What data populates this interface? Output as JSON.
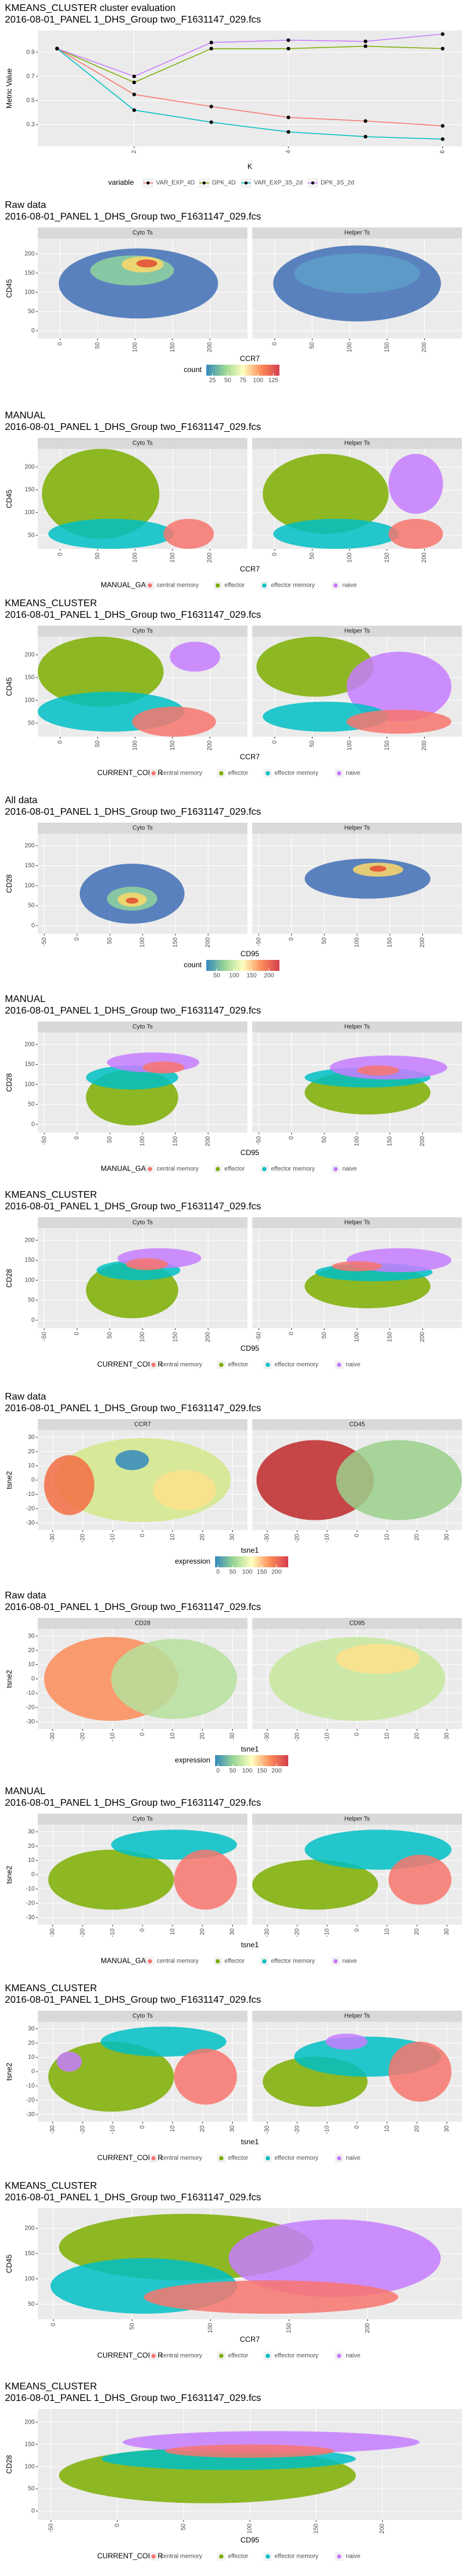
{
  "chart_data": [
    {
      "type": "line",
      "title": "KMEANS_CLUSTER cluster evaluation",
      "subtitle": "2016-08-01_PANEL 1_DHS_Group two_F1631147_029.fcs",
      "xlabel": "K",
      "ylabel": "Metric Value",
      "x": [
        1,
        2,
        3,
        4,
        5,
        6
      ],
      "xlim": [
        0.75,
        6.25
      ],
      "xticks": [
        2,
        4,
        6
      ],
      "ylim": [
        0.12,
        1.08
      ],
      "yticks": [
        0.3,
        0.5,
        0.7,
        0.9
      ],
      "legend_title": "variable",
      "point_color": "#000000",
      "series": [
        {
          "name": "VAR_EXP_4D",
          "color": "#F8766D",
          "values": [
            0.93,
            0.55,
            0.45,
            0.36,
            0.33,
            0.29
          ]
        },
        {
          "name": "DPK_4D",
          "color": "#7CAE00",
          "values": [
            0.93,
            0.65,
            0.93,
            0.93,
            0.95,
            0.93
          ]
        },
        {
          "name": "VAR_EXP_3S_2d",
          "color": "#00BFC4",
          "values": [
            0.93,
            0.42,
            0.32,
            0.24,
            0.2,
            0.18
          ]
        },
        {
          "name": "DPK_3S_2d",
          "color": "#C77CFF",
          "values": [
            0.93,
            0.7,
            0.98,
            1.0,
            0.99,
            1.05
          ]
        }
      ]
    },
    {
      "type": "scatter",
      "title": "Raw data",
      "subtitle": "2016-08-01_PANEL 1_DHS_Group two_F1631147_029.fcs",
      "facets": [
        "Cyto Ts",
        "Helper Ts"
      ],
      "xlabel": "CCR7",
      "ylabel": "CD45",
      "xlim": [
        -30,
        250
      ],
      "xticks": [
        0,
        50,
        100,
        150,
        200
      ],
      "ylim": [
        -20,
        240
      ],
      "yticks": [
        0,
        50,
        100,
        150,
        200
      ],
      "colorbar": {
        "title": "count",
        "lim": [
          15,
          135
        ],
        "ticks": [
          25,
          50,
          75,
          100,
          125
        ]
      }
    },
    {
      "type": "scatter",
      "title": "MANUAL",
      "subtitle": "2016-08-01_PANEL 1_DHS_Group two_F1631147_029.fcs",
      "facets": [
        "Cyto Ts",
        "Helper Ts"
      ],
      "xlabel": "CCR7",
      "ylabel": "CD45",
      "xlim": [
        -30,
        250
      ],
      "xticks": [
        0,
        50,
        100,
        150,
        200
      ],
      "ylim": [
        20,
        240
      ],
      "yticks": [
        50,
        100,
        150,
        200
      ],
      "legend": {
        "title": "MANUAL_GATE",
        "items": [
          {
            "name": "central memory",
            "color": "#F8766D"
          },
          {
            "name": "effector",
            "color": "#7CAE00"
          },
          {
            "name": "effector memory",
            "color": "#00BFC4"
          },
          {
            "name": "naive",
            "color": "#C77CFF"
          }
        ]
      }
    },
    {
      "type": "scatter",
      "title": "KMEANS_CLUSTER",
      "subtitle": "2016-08-01_PANEL 1_DHS_Group two_F1631147_029.fcs",
      "facets": [
        "Cyto Ts",
        "Helper Ts"
      ],
      "xlabel": "CCR7",
      "ylabel": "CD45",
      "xlim": [
        -30,
        250
      ],
      "xticks": [
        0,
        50,
        100,
        150,
        200
      ],
      "ylim": [
        20,
        240
      ],
      "yticks": [
        50,
        100,
        150,
        200
      ],
      "legend": {
        "title": "CURRENT_COLOR",
        "items": [
          {
            "name": "central memory",
            "color": "#F8766D"
          },
          {
            "name": "effector",
            "color": "#7CAE00"
          },
          {
            "name": "effector memory",
            "color": "#00BFC4"
          },
          {
            "name": "naive",
            "color": "#C77CFF"
          }
        ]
      }
    },
    {
      "type": "scatter",
      "title": "All data",
      "subtitle": "2016-08-01_PANEL 1_DHS_Group two_F1631147_029.fcs",
      "facets": [
        "Cyto Ts",
        "Helper Ts"
      ],
      "xlabel": "CD95",
      "ylabel": "CD28",
      "xlim": [
        -60,
        260
      ],
      "xticks": [
        -50,
        0,
        50,
        100,
        150,
        200
      ],
      "ylim": [
        -20,
        230
      ],
      "yticks": [
        0,
        50,
        100,
        150,
        200
      ],
      "colorbar": {
        "title": "count",
        "lim": [
          20,
          230
        ],
        "ticks": [
          50,
          100,
          150,
          200
        ]
      }
    },
    {
      "type": "scatter",
      "title": "MANUAL",
      "subtitle": "2016-08-01_PANEL 1_DHS_Group two_F1631147_029.fcs",
      "facets": [
        "Cyto Ts",
        "Helper Ts"
      ],
      "xlabel": "CD95",
      "ylabel": "CD28",
      "xlim": [
        -60,
        260
      ],
      "xticks": [
        -50,
        0,
        50,
        100,
        150,
        200
      ],
      "ylim": [
        -20,
        230
      ],
      "yticks": [
        0,
        50,
        100,
        150,
        200
      ],
      "legend": {
        "title": "MANUAL_GATE",
        "items": [
          {
            "name": "central memory",
            "color": "#F8766D"
          },
          {
            "name": "effector",
            "color": "#7CAE00"
          },
          {
            "name": "effector memory",
            "color": "#00BFC4"
          },
          {
            "name": "naive",
            "color": "#C77CFF"
          }
        ]
      }
    },
    {
      "type": "scatter",
      "title": "KMEANS_CLUSTER",
      "subtitle": "2016-08-01_PANEL 1_DHS_Group two_F1631147_029.fcs",
      "facets": [
        "Cyto Ts",
        "Helper Ts"
      ],
      "xlabel": "CD95",
      "ylabel": "CD28",
      "xlim": [
        -60,
        260
      ],
      "xticks": [
        -50,
        0,
        50,
        100,
        150,
        200
      ],
      "ylim": [
        -20,
        230
      ],
      "yticks": [
        0,
        50,
        100,
        150,
        200
      ],
      "legend": {
        "title": "CURRENT_COLOR",
        "items": [
          {
            "name": "central memory",
            "color": "#F8766D"
          },
          {
            "name": "effector",
            "color": "#7CAE00"
          },
          {
            "name": "effector memory",
            "color": "#00BFC4"
          },
          {
            "name": "naive",
            "color": "#C77CFF"
          }
        ]
      }
    },
    {
      "type": "scatter",
      "title": "Raw data",
      "subtitle": "2016-08-01_PANEL 1_DHS_Group two_F1631147_029.fcs",
      "facets": [
        "CCR7",
        "CD45"
      ],
      "xlabel": "tsne1",
      "ylabel": "tsne2",
      "xlim": [
        -35,
        35
      ],
      "xticks": [
        -30,
        -20,
        -10,
        0,
        10,
        20,
        30
      ],
      "ylim": [
        -35,
        35
      ],
      "yticks": [
        -30,
        -20,
        -10,
        0,
        10,
        20,
        30
      ],
      "colorbar": {
        "title": "expression",
        "lim": [
          -10,
          240
        ],
        "ticks": [
          0,
          50,
          100,
          150,
          200
        ]
      }
    },
    {
      "type": "scatter",
      "title": "Raw data",
      "subtitle": "2016-08-01_PANEL 1_DHS_Group two_F1631147_029.fcs",
      "facets": [
        "CD28",
        "CD95"
      ],
      "xlabel": "tsne1",
      "ylabel": "tsne2",
      "xlim": [
        -35,
        35
      ],
      "xticks": [
        -30,
        -20,
        -10,
        0,
        10,
        20,
        30
      ],
      "ylim": [
        -35,
        35
      ],
      "yticks": [
        -30,
        -20,
        -10,
        0,
        10,
        20,
        30
      ],
      "colorbar": {
        "title": "expression",
        "lim": [
          -10,
          240
        ],
        "ticks": [
          0,
          50,
          100,
          150,
          200
        ]
      }
    },
    {
      "type": "scatter",
      "title": "MANUAL",
      "subtitle": "2016-08-01_PANEL 1_DHS_Group two_F1631147_029.fcs",
      "facets": [
        "Cyto Ts",
        "Helper Ts"
      ],
      "xlabel": "tsne1",
      "ylabel": "tsne2",
      "xlim": [
        -35,
        35
      ],
      "xticks": [
        -30,
        -20,
        -10,
        0,
        10,
        20,
        30
      ],
      "ylim": [
        -35,
        35
      ],
      "yticks": [
        -30,
        -20,
        -10,
        0,
        10,
        20,
        30
      ],
      "legend": {
        "title": "MANUAL_GATE",
        "items": [
          {
            "name": "central memory",
            "color": "#F8766D"
          },
          {
            "name": "effector",
            "color": "#7CAE00"
          },
          {
            "name": "effector memory",
            "color": "#00BFC4"
          },
          {
            "name": "naive",
            "color": "#C77CFF"
          }
        ]
      }
    },
    {
      "type": "scatter",
      "title": "KMEANS_CLUSTER",
      "subtitle": "2016-08-01_PANEL 1_DHS_Group two_F1631147_029.fcs",
      "facets": [
        "Cyto Ts",
        "Helper Ts"
      ],
      "xlabel": "tsne1",
      "ylabel": "tsne2",
      "xlim": [
        -35,
        35
      ],
      "xticks": [
        -30,
        -20,
        -10,
        0,
        10,
        20,
        30
      ],
      "ylim": [
        -35,
        35
      ],
      "yticks": [
        -30,
        -20,
        -10,
        0,
        10,
        20,
        30
      ],
      "legend": {
        "title": "CURRENT_COLOR",
        "items": [
          {
            "name": "central memory",
            "color": "#F8766D"
          },
          {
            "name": "effector",
            "color": "#7CAE00"
          },
          {
            "name": "effector memory",
            "color": "#00BFC4"
          },
          {
            "name": "naive",
            "color": "#C77CFF"
          }
        ]
      }
    },
    {
      "type": "scatter",
      "title": "KMEANS_CLUSTER",
      "subtitle": "2016-08-01_PANEL 1_DHS_Group two_F1631147_029.fcs",
      "xlabel": "CCR7",
      "ylabel": "CD45",
      "xlim": [
        -10,
        260
      ],
      "xticks": [
        0,
        50,
        100,
        150,
        200
      ],
      "ylim": [
        20,
        240
      ],
      "yticks": [
        50,
        100,
        150,
        200
      ],
      "legend": {
        "title": "CURRENT_COLOR",
        "items": [
          {
            "name": "central memory",
            "color": "#F8766D"
          },
          {
            "name": "effector",
            "color": "#7CAE00"
          },
          {
            "name": "effector memory",
            "color": "#00BFC4"
          },
          {
            "name": "naive",
            "color": "#C77CFF"
          }
        ]
      }
    },
    {
      "type": "scatter",
      "title": "KMEANS_CLUSTER",
      "subtitle": "2016-08-01_PANEL 1_DHS_Group two_F1631147_029.fcs",
      "xlabel": "CD95",
      "ylabel": "CD28",
      "xlim": [
        -60,
        260
      ],
      "xticks": [
        -50,
        0,
        50,
        100,
        150,
        200
      ],
      "ylim": [
        -20,
        230
      ],
      "yticks": [
        0,
        50,
        100,
        150,
        200
      ],
      "legend": {
        "title": "CURRENT_COLOR",
        "items": [
          {
            "name": "central memory",
            "color": "#F8766D"
          },
          {
            "name": "effector",
            "color": "#7CAE00"
          },
          {
            "name": "effector memory",
            "color": "#00BFC4"
          },
          {
            "name": "naive",
            "color": "#C77CFF"
          }
        ]
      }
    }
  ]
}
